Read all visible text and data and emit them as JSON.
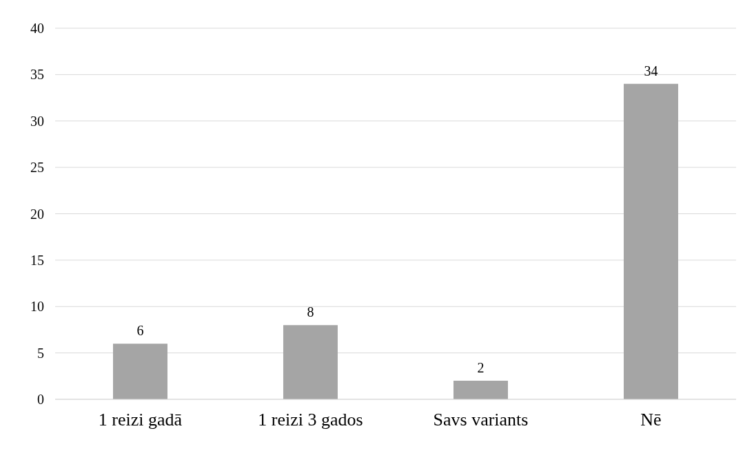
{
  "chart_data": {
    "type": "bar",
    "categories": [
      "1 reizi gadā",
      "1 reizi 3 gados",
      "Savs variants",
      "Nē"
    ],
    "values": [
      6,
      8,
      2,
      34
    ],
    "color": "#a5a5a5",
    "ylim": [
      0,
      40
    ],
    "yticks": [
      0,
      5,
      10,
      15,
      20,
      25,
      30,
      35,
      40
    ],
    "grid": "y",
    "data_labels": true
  }
}
